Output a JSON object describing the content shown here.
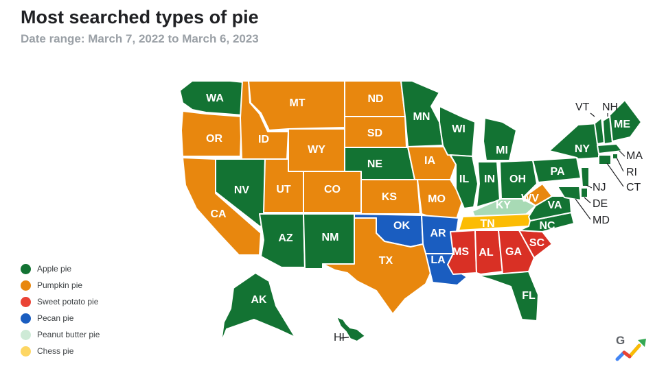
{
  "title": "Most searched types of pie",
  "subtitle": "Date range: March 7, 2022 to March 6, 2023",
  "colors": {
    "apple": "#137333",
    "pumpkin": "#e8870e",
    "sweet_potato": "#d93025",
    "pecan": "#1a5dc0",
    "peanut_butter": "#a8dab5",
    "chess": "#fbbc04"
  },
  "legend": [
    {
      "key": "apple",
      "label": "Apple pie",
      "color": "#137333"
    },
    {
      "key": "pumpkin",
      "label": "Pumpkin pie",
      "color": "#e8870e"
    },
    {
      "key": "sweet_potato",
      "label": "Sweet potato pie",
      "color": "#ea4335"
    },
    {
      "key": "pecan",
      "label": "Pecan pie",
      "color": "#1a5dc0"
    },
    {
      "key": "peanut_butter",
      "label": "Peanut butter pie",
      "color": "#ceead6"
    },
    {
      "key": "chess",
      "label": "Chess pie",
      "color": "#fdd663"
    }
  ],
  "states": [
    {
      "code": "WA",
      "pie": "apple"
    },
    {
      "code": "OR",
      "pie": "pumpkin"
    },
    {
      "code": "CA",
      "pie": "pumpkin"
    },
    {
      "code": "ID",
      "pie": "pumpkin"
    },
    {
      "code": "NV",
      "pie": "apple"
    },
    {
      "code": "MT",
      "pie": "pumpkin"
    },
    {
      "code": "WY",
      "pie": "pumpkin"
    },
    {
      "code": "UT",
      "pie": "pumpkin"
    },
    {
      "code": "AZ",
      "pie": "apple"
    },
    {
      "code": "CO",
      "pie": "pumpkin"
    },
    {
      "code": "NM",
      "pie": "apple"
    },
    {
      "code": "ND",
      "pie": "pumpkin"
    },
    {
      "code": "SD",
      "pie": "pumpkin"
    },
    {
      "code": "NE",
      "pie": "apple"
    },
    {
      "code": "KS",
      "pie": "pumpkin"
    },
    {
      "code": "OK",
      "pie": "pecan"
    },
    {
      "code": "TX",
      "pie": "pumpkin"
    },
    {
      "code": "MN",
      "pie": "apple"
    },
    {
      "code": "IA",
      "pie": "pumpkin"
    },
    {
      "code": "MO",
      "pie": "pumpkin"
    },
    {
      "code": "AR",
      "pie": "pecan"
    },
    {
      "code": "LA",
      "pie": "pecan"
    },
    {
      "code": "WI",
      "pie": "apple"
    },
    {
      "code": "IL",
      "pie": "apple"
    },
    {
      "code": "MI",
      "pie": "apple"
    },
    {
      "code": "IN",
      "pie": "apple"
    },
    {
      "code": "OH",
      "pie": "apple"
    },
    {
      "code": "KY",
      "pie": "peanut_butter"
    },
    {
      "code": "TN",
      "pie": "chess"
    },
    {
      "code": "MS",
      "pie": "sweet_potato"
    },
    {
      "code": "AL",
      "pie": "sweet_potato"
    },
    {
      "code": "GA",
      "pie": "sweet_potato"
    },
    {
      "code": "FL",
      "pie": "apple"
    },
    {
      "code": "SC",
      "pie": "sweet_potato"
    },
    {
      "code": "NC",
      "pie": "apple"
    },
    {
      "code": "VA",
      "pie": "apple"
    },
    {
      "code": "WV",
      "pie": "pumpkin"
    },
    {
      "code": "PA",
      "pie": "apple"
    },
    {
      "code": "NY",
      "pie": "apple"
    },
    {
      "code": "VT",
      "pie": "apple"
    },
    {
      "code": "NH",
      "pie": "apple"
    },
    {
      "code": "ME",
      "pie": "apple"
    },
    {
      "code": "MA",
      "pie": "apple"
    },
    {
      "code": "RI",
      "pie": "apple"
    },
    {
      "code": "CT",
      "pie": "apple"
    },
    {
      "code": "NJ",
      "pie": "apple"
    },
    {
      "code": "DE",
      "pie": "apple"
    },
    {
      "code": "MD",
      "pie": "apple"
    },
    {
      "code": "AK",
      "pie": "apple"
    },
    {
      "code": "HI",
      "pie": "apple"
    }
  ],
  "logo": "google-trends-logo"
}
